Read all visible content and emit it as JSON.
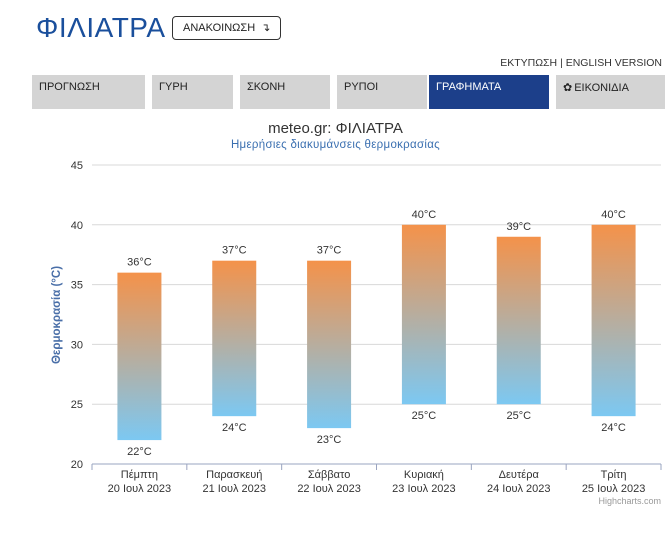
{
  "header": {
    "city": "ΦΙΛΙΑΤΡΑ",
    "announce_label": "ΑΝΑΚΟΙΝΩΣΗ",
    "announce_arrow": "↴",
    "print_label": "ΕΚΤΥΠΩΣΗ",
    "separator": "|",
    "english_label": "ENGLISH VERSION"
  },
  "tabs": [
    {
      "label": "ΠΡΟΓΝΩΣΗ",
      "active": false
    },
    {
      "label": "ΓΥΡΗ",
      "active": false
    },
    {
      "label": "ΣΚΟΝΗ",
      "active": false
    },
    {
      "label": "ΡΥΠΟΙ",
      "active": false
    },
    {
      "label": "ΓΡΑΦΗΜΑΤΑ",
      "active": true
    },
    {
      "label": "ΕΙΚΟΝΙΔΙΑ",
      "active": false,
      "icon": "gear-icon"
    }
  ],
  "colors": {
    "accent": "#1c3f8a",
    "bar_top": "#f4924a",
    "bar_bottom": "#7cc8f2",
    "grid": "#d8d8d8",
    "axis_text": "#333333"
  },
  "chart_data": {
    "type": "bar",
    "subtype": "columnrange",
    "title": "meteo.gr: ΦΙΛΙΑΤΡΑ",
    "subtitle": "Ημερήσιες διακυμάνσεις θερμοκρασίας",
    "ylabel": "Θερμοκρασία (°C)",
    "ylim": [
      20,
      45
    ],
    "yticks": [
      20,
      25,
      30,
      35,
      40,
      45
    ],
    "grid": true,
    "categories": [
      {
        "day": "Πέμπτη",
        "date": "20 Ιουλ 2023"
      },
      {
        "day": "Παρασκευή",
        "date": "21 Ιουλ 2023"
      },
      {
        "day": "Σάββατο",
        "date": "22 Ιουλ 2023"
      },
      {
        "day": "Κυριακή",
        "date": "23 Ιουλ 2023"
      },
      {
        "day": "Δευτέρα",
        "date": "24 Ιουλ 2023"
      },
      {
        "day": "Τρίτη",
        "date": "25 Ιουλ 2023"
      }
    ],
    "low": [
      22,
      24,
      23,
      25,
      25,
      24
    ],
    "high": [
      36,
      37,
      37,
      40,
      39,
      40
    ],
    "unit": "°C",
    "credits": "Highcharts.com"
  }
}
